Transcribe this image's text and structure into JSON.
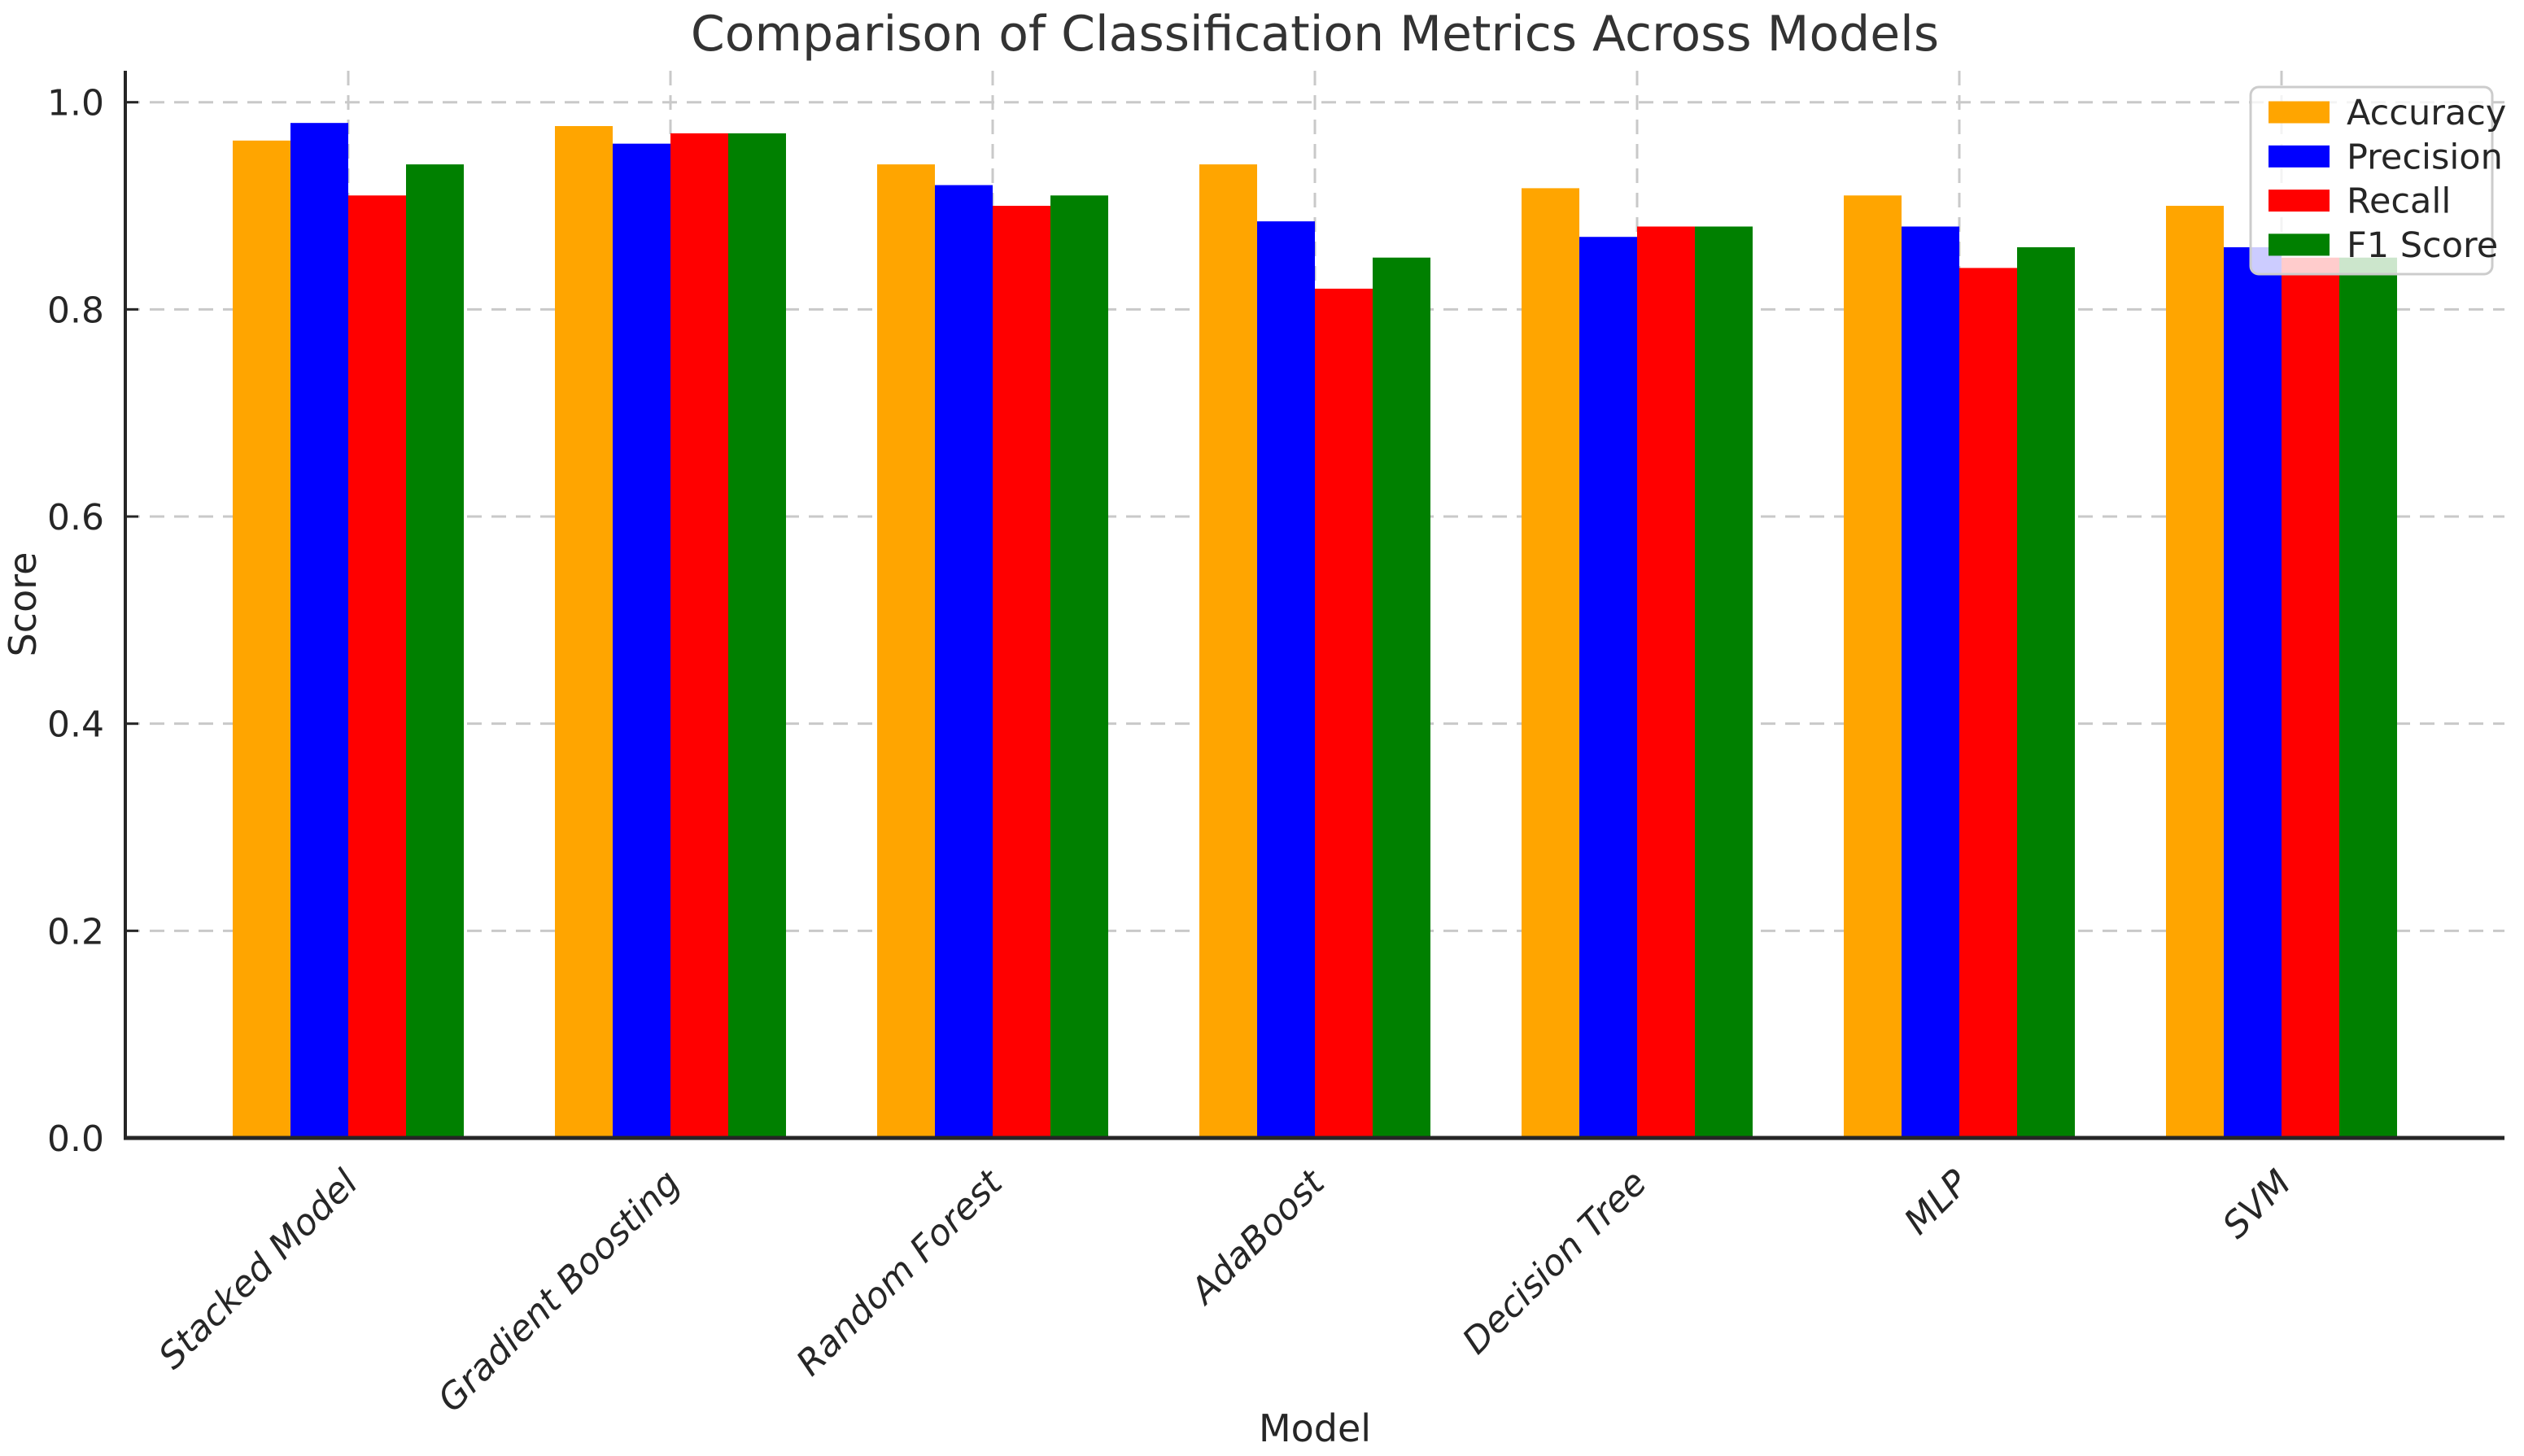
{
  "figure": {
    "background": "#ffffff",
    "text_color": "#262626",
    "spine_color": "#262626",
    "grid_color": "#c9c9c9"
  },
  "chart_data": {
    "type": "bar",
    "title": "Comparison of Classification Metrics Across Models",
    "xlabel": "Model",
    "ylabel": "Score",
    "categories": [
      "Stacked Model",
      "Gradient Boosting",
      "Random Forest",
      "AdaBoost",
      "Decision Tree",
      "MLP",
      "SVM"
    ],
    "series": [
      {
        "name": "Accuracy",
        "color": "#FFA500",
        "values": [
          0.963,
          0.977,
          0.94,
          0.94,
          0.917,
          0.91,
          0.9
        ]
      },
      {
        "name": "Precision",
        "color": "#0000FF",
        "values": [
          0.98,
          0.96,
          0.92,
          0.885,
          0.87,
          0.88,
          0.86
        ]
      },
      {
        "name": "Recall",
        "color": "#FF0000",
        "values": [
          0.91,
          0.97,
          0.9,
          0.82,
          0.88,
          0.84,
          0.85
        ]
      },
      {
        "name": "F1 Score",
        "color": "#008000",
        "values": [
          0.94,
          0.97,
          0.91,
          0.85,
          0.88,
          0.86,
          0.85
        ]
      }
    ],
    "ylim": [
      0.0,
      1.03
    ],
    "yticks": [
      0.0,
      0.2,
      0.4,
      0.6,
      0.8,
      1.0
    ],
    "ytick_labels": [
      "0.0",
      "0.2",
      "0.4",
      "0.6",
      "0.8",
      "1.0"
    ],
    "grid": "both-dashed",
    "legend_position": "upper right",
    "xtick_rotation": 45
  }
}
